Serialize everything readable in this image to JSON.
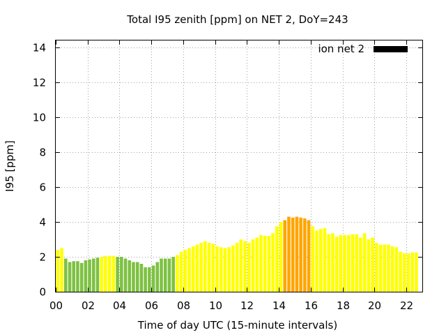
{
  "chart_data": {
    "type": "bar",
    "title": "Total I95 zenith [ppm] on NET 2, DoY=243",
    "xlabel": "Time of day UTC (15-minute intervals)",
    "ylabel": "I95 [ppm]",
    "legend": {
      "label": "ion net 2",
      "color": "#000000",
      "placement": "top-right"
    },
    "xlim": [
      0,
      23
    ],
    "ylim": [
      0,
      14.4
    ],
    "grid": true,
    "x_ticks": [
      {
        "value": 0,
        "label": "00"
      },
      {
        "value": 2,
        "label": "02"
      },
      {
        "value": 4,
        "label": "04"
      },
      {
        "value": 6,
        "label": "06"
      },
      {
        "value": 8,
        "label": "08"
      },
      {
        "value": 10,
        "label": "10"
      },
      {
        "value": 12,
        "label": "12"
      },
      {
        "value": 14,
        "label": "14"
      },
      {
        "value": 16,
        "label": "16"
      },
      {
        "value": 18,
        "label": "18"
      },
      {
        "value": 20,
        "label": "20"
      },
      {
        "value": 22,
        "label": "22"
      }
    ],
    "y_ticks": [
      {
        "value": 0,
        "label": "0"
      },
      {
        "value": 2,
        "label": "2"
      },
      {
        "value": 4,
        "label": "4"
      },
      {
        "value": 6,
        "label": "6"
      },
      {
        "value": 8,
        "label": "8"
      },
      {
        "value": 10,
        "label": "10"
      },
      {
        "value": 12,
        "label": "12"
      },
      {
        "value": 14,
        "label": "14"
      }
    ],
    "interval_hours": 0.25,
    "colors": {
      "green": "#7dc142",
      "yellow": "#ffff00",
      "orange": "#ffa500"
    },
    "values": [
      2.4,
      2.5,
      1.9,
      1.7,
      1.75,
      1.75,
      1.65,
      1.8,
      1.85,
      1.9,
      1.95,
      2.0,
      2.05,
      2.05,
      2.05,
      2.0,
      2.0,
      1.9,
      1.8,
      1.7,
      1.7,
      1.6,
      1.4,
      1.4,
      1.5,
      1.7,
      1.9,
      1.9,
      1.9,
      2.0,
      2.1,
      2.3,
      2.4,
      2.5,
      2.6,
      2.7,
      2.8,
      2.9,
      2.8,
      2.75,
      2.6,
      2.55,
      2.5,
      2.55,
      2.65,
      2.8,
      3.0,
      2.9,
      2.8,
      3.0,
      3.1,
      3.25,
      3.2,
      3.2,
      3.35,
      3.75,
      4.0,
      4.1,
      4.3,
      4.25,
      4.3,
      4.25,
      4.2,
      4.1,
      3.75,
      3.5,
      3.6,
      3.65,
      3.3,
      3.35,
      3.15,
      3.25,
      3.25,
      3.25,
      3.3,
      3.3,
      3.1,
      3.35,
      3.0,
      3.1,
      2.8,
      2.7,
      2.7,
      2.7,
      2.6,
      2.55,
      2.3,
      2.2,
      2.2,
      2.25,
      2.25
    ],
    "bar_colors": [
      "yellow",
      "yellow",
      "green",
      "green",
      "green",
      "green",
      "green",
      "green",
      "green",
      "green",
      "green",
      "yellow",
      "yellow",
      "yellow",
      "yellow",
      "green",
      "green",
      "green",
      "green",
      "green",
      "green",
      "green",
      "green",
      "green",
      "green",
      "green",
      "green",
      "green",
      "green",
      "green",
      "yellow",
      "yellow",
      "yellow",
      "yellow",
      "yellow",
      "yellow",
      "yellow",
      "yellow",
      "yellow",
      "yellow",
      "yellow",
      "yellow",
      "yellow",
      "yellow",
      "yellow",
      "yellow",
      "yellow",
      "yellow",
      "yellow",
      "yellow",
      "yellow",
      "yellow",
      "yellow",
      "yellow",
      "yellow",
      "yellow",
      "yellow",
      "orange",
      "orange",
      "orange",
      "orange",
      "orange",
      "orange",
      "orange",
      "yellow",
      "yellow",
      "yellow",
      "yellow",
      "yellow",
      "yellow",
      "yellow",
      "yellow",
      "yellow",
      "yellow",
      "yellow",
      "yellow",
      "yellow",
      "yellow",
      "yellow",
      "yellow",
      "yellow",
      "yellow",
      "yellow",
      "yellow",
      "yellow",
      "yellow",
      "yellow",
      "yellow",
      "yellow",
      "yellow",
      "yellow"
    ]
  }
}
